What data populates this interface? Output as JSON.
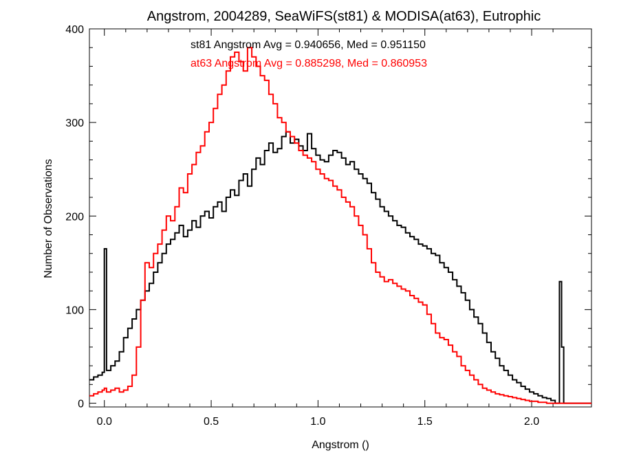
{
  "chart_data": {
    "type": "line",
    "title": "Angstrom, 2004289, SeaWiFS(st81) & MODISA(at63), Eutrophic",
    "xlabel": "Angstrom ()",
    "ylabel": "Number of Observations",
    "xlim": [
      -0.07,
      2.28
    ],
    "ylim": [
      -4,
      400
    ],
    "xticks": [
      "0.0",
      "0.5",
      "1.0",
      "1.5",
      "2.0"
    ],
    "xtick_values": [
      0.0,
      0.5,
      1.0,
      1.5,
      2.0
    ],
    "yticks": [
      "0",
      "100",
      "200",
      "300",
      "400"
    ],
    "ytick_values": [
      0,
      100,
      200,
      300,
      400
    ],
    "grid": false,
    "legend_position": "top-center",
    "annotations": [
      "st81 Angstrom Avg = 0.940656, Med = 0.951150",
      "at63 Angstrom Avg = 0.885298, Med = 0.860953"
    ],
    "series": [
      {
        "color": "#000000",
        "x": [
          -0.07,
          -0.05,
          -0.03,
          -0.01,
          0.0,
          0.01,
          0.03,
          0.05,
          0.07,
          0.09,
          0.11,
          0.13,
          0.15,
          0.17,
          0.19,
          0.21,
          0.23,
          0.25,
          0.27,
          0.29,
          0.31,
          0.33,
          0.35,
          0.37,
          0.39,
          0.41,
          0.43,
          0.45,
          0.47,
          0.49,
          0.51,
          0.53,
          0.55,
          0.57,
          0.59,
          0.61,
          0.63,
          0.65,
          0.67,
          0.69,
          0.71,
          0.73,
          0.75,
          0.77,
          0.79,
          0.81,
          0.83,
          0.85,
          0.87,
          0.89,
          0.91,
          0.93,
          0.95,
          0.97,
          0.99,
          1.01,
          1.03,
          1.05,
          1.07,
          1.09,
          1.11,
          1.13,
          1.15,
          1.17,
          1.19,
          1.21,
          1.23,
          1.25,
          1.27,
          1.29,
          1.31,
          1.33,
          1.35,
          1.37,
          1.39,
          1.41,
          1.43,
          1.45,
          1.47,
          1.49,
          1.51,
          1.53,
          1.55,
          1.57,
          1.59,
          1.61,
          1.63,
          1.65,
          1.67,
          1.69,
          1.71,
          1.73,
          1.75,
          1.77,
          1.79,
          1.81,
          1.83,
          1.85,
          1.87,
          1.89,
          1.91,
          1.93,
          1.95,
          1.97,
          1.99,
          2.01,
          2.03,
          2.05,
          2.07,
          2.09,
          2.11,
          2.13,
          2.14,
          2.15,
          2.17,
          2.19,
          2.21,
          2.23,
          2.25,
          2.27
        ],
        "values": [
          25,
          28,
          30,
          33,
          165,
          35,
          40,
          45,
          55,
          70,
          80,
          90,
          100,
          110,
          120,
          128,
          140,
          150,
          160,
          170,
          175,
          182,
          190,
          178,
          185,
          195,
          188,
          200,
          205,
          198,
          210,
          215,
          205,
          220,
          228,
          222,
          238,
          245,
          232,
          250,
          262,
          255,
          270,
          278,
          268,
          272,
          285,
          290,
          278,
          282,
          275,
          270,
          288,
          272,
          265,
          260,
          258,
          265,
          270,
          268,
          262,
          255,
          258,
          250,
          245,
          240,
          235,
          225,
          218,
          210,
          205,
          200,
          195,
          190,
          188,
          182,
          178,
          175,
          170,
          168,
          165,
          160,
          158,
          150,
          145,
          140,
          132,
          125,
          118,
          110,
          100,
          92,
          85,
          75,
          65,
          55,
          48,
          40,
          35,
          30,
          25,
          22,
          18,
          15,
          12,
          10,
          8,
          6,
          5,
          3,
          0,
          130,
          60,
          0,
          0,
          0,
          0,
          0,
          0,
          0
        ]
      },
      {
        "color": "#ff0000",
        "x": [
          -0.07,
          -0.05,
          -0.03,
          -0.01,
          0.0,
          0.01,
          0.03,
          0.05,
          0.07,
          0.09,
          0.11,
          0.13,
          0.15,
          0.17,
          0.19,
          0.21,
          0.23,
          0.25,
          0.27,
          0.29,
          0.31,
          0.33,
          0.35,
          0.37,
          0.39,
          0.41,
          0.43,
          0.45,
          0.47,
          0.49,
          0.51,
          0.53,
          0.55,
          0.57,
          0.59,
          0.61,
          0.63,
          0.65,
          0.67,
          0.69,
          0.71,
          0.73,
          0.75,
          0.77,
          0.79,
          0.81,
          0.83,
          0.85,
          0.87,
          0.89,
          0.91,
          0.93,
          0.95,
          0.97,
          0.99,
          1.01,
          1.03,
          1.05,
          1.07,
          1.09,
          1.11,
          1.13,
          1.15,
          1.17,
          1.19,
          1.21,
          1.23,
          1.25,
          1.27,
          1.29,
          1.31,
          1.33,
          1.35,
          1.37,
          1.39,
          1.41,
          1.43,
          1.45,
          1.47,
          1.49,
          1.51,
          1.53,
          1.55,
          1.57,
          1.59,
          1.61,
          1.63,
          1.65,
          1.67,
          1.69,
          1.71,
          1.73,
          1.75,
          1.77,
          1.79,
          1.81,
          1.83,
          1.85,
          1.87,
          1.89,
          1.91,
          1.93,
          1.95,
          1.97,
          1.99,
          2.01,
          2.03,
          2.05,
          2.07,
          2.09,
          2.11,
          2.13,
          2.14,
          2.15,
          2.17,
          2.19,
          2.21,
          2.23,
          2.25,
          2.27
        ],
        "values": [
          8,
          10,
          12,
          14,
          16,
          12,
          14,
          16,
          12,
          14,
          18,
          30,
          60,
          110,
          150,
          145,
          160,
          170,
          185,
          200,
          195,
          210,
          230,
          225,
          245,
          255,
          268,
          275,
          290,
          300,
          315,
          330,
          340,
          355,
          370,
          375,
          365,
          355,
          380,
          370,
          360,
          350,
          345,
          330,
          320,
          305,
          300,
          290,
          285,
          278,
          270,
          265,
          262,
          258,
          250,
          245,
          240,
          238,
          232,
          228,
          220,
          215,
          210,
          200,
          190,
          180,
          165,
          150,
          140,
          135,
          130,
          132,
          128,
          125,
          122,
          120,
          115,
          112,
          108,
          105,
          95,
          85,
          75,
          70,
          68,
          62,
          55,
          50,
          40,
          35,
          30,
          25,
          20,
          16,
          14,
          12,
          10,
          9,
          8,
          7,
          6,
          5,
          4,
          3,
          2,
          2,
          1,
          1,
          0,
          0,
          0,
          0,
          0,
          0,
          0,
          0,
          0,
          0,
          0,
          0
        ]
      }
    ]
  }
}
